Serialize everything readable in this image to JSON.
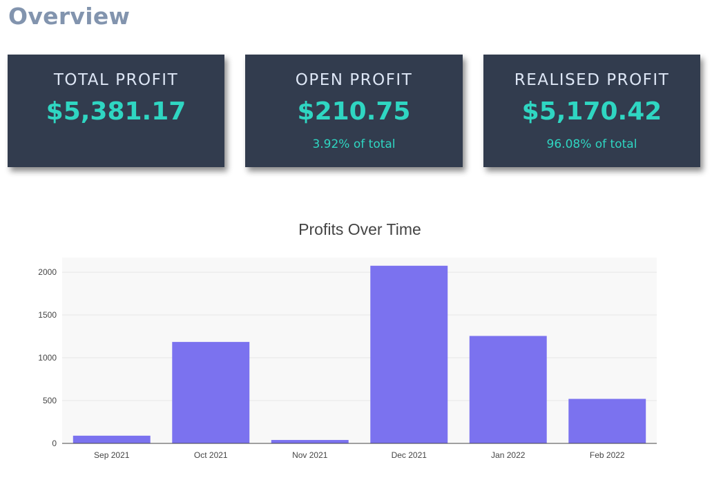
{
  "page": {
    "title": "Overview"
  },
  "cards": [
    {
      "label": "TOTAL PROFIT",
      "value": "$5,381.17",
      "sub": ""
    },
    {
      "label": "OPEN PROFIT",
      "value": "$210.75",
      "sub": "3.92% of total"
    },
    {
      "label": "REALISED PROFIT",
      "value": "$5,170.42",
      "sub": "96.08% of total"
    }
  ],
  "colors": {
    "card_background": "#323c4e",
    "accent": "#2fd6c2",
    "bar": "#7b72ef",
    "plot_background": "#f8f8f8",
    "page_title": "#8294ae"
  },
  "chart_data": {
    "type": "bar",
    "title": "Profits Over Time",
    "xlabel": "",
    "ylabel": "",
    "categories": [
      "Sep 2021",
      "Oct 2021",
      "Nov 2021",
      "Dec 2021",
      "Jan 2022",
      "Feb 2022"
    ],
    "values": [
      90,
      1185,
      40,
      2075,
      1255,
      520
    ],
    "ylim": [
      0,
      2170
    ],
    "yticks": [
      0,
      500,
      1000,
      1500,
      2000
    ],
    "grid": true,
    "legend": "none"
  }
}
